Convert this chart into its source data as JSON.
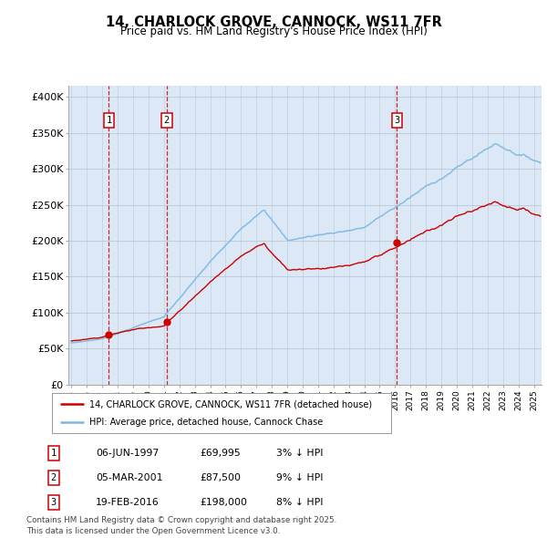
{
  "title": "14, CHARLOCK GROVE, CANNOCK, WS11 7FR",
  "subtitle": "Price paid vs. HM Land Registry's House Price Index (HPI)",
  "ylabel_ticks": [
    "£0",
    "£50K",
    "£100K",
    "£150K",
    "£200K",
    "£250K",
    "£300K",
    "£350K",
    "£400K"
  ],
  "ytick_values": [
    0,
    50000,
    100000,
    150000,
    200000,
    250000,
    300000,
    350000,
    400000
  ],
  "ylim": [
    0,
    415000
  ],
  "xlim_start": 1994.8,
  "xlim_end": 2025.5,
  "sale_color": "#cc0000",
  "hpi_color": "#7ab8e0",
  "vline_color": "#cc0000",
  "background_color": "#dce8f5",
  "grid_color": "#b8c8d8",
  "sales": [
    {
      "date_decimal": 1997.43,
      "price": 69995,
      "label": "1"
    },
    {
      "date_decimal": 2001.18,
      "price": 87500,
      "label": "2"
    },
    {
      "date_decimal": 2016.12,
      "price": 198000,
      "label": "3"
    }
  ],
  "legend_sale_label": "14, CHARLOCK GROVE, CANNOCK, WS11 7FR (detached house)",
  "legend_hpi_label": "HPI: Average price, detached house, Cannock Chase",
  "table_rows": [
    {
      "num": "1",
      "date": "06-JUN-1997",
      "price": "£69,995",
      "pct": "3% ↓ HPI"
    },
    {
      "num": "2",
      "date": "05-MAR-2001",
      "price": "£87,500",
      "pct": "9% ↓ HPI"
    },
    {
      "num": "3",
      "date": "19-FEB-2016",
      "price": "£198,000",
      "pct": "8% ↓ HPI"
    }
  ],
  "footer": "Contains HM Land Registry data © Crown copyright and database right 2025.\nThis data is licensed under the Open Government Licence v3.0."
}
